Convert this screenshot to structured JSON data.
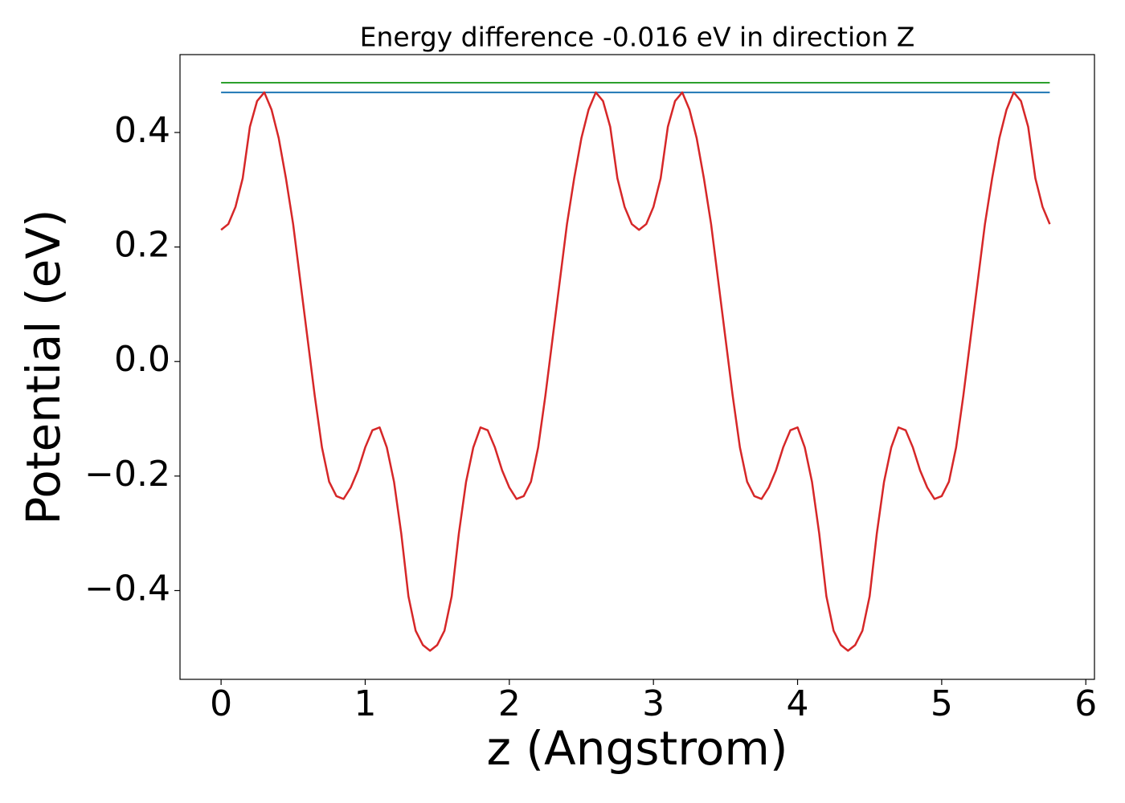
{
  "chart_data": {
    "type": "line",
    "title": "Energy difference -0.016 eV in direction Z",
    "xlabel": "z (Angstrom)",
    "ylabel": "Potential (eV)",
    "x": [
      0,
      0.05,
      0.1,
      0.15,
      0.2,
      0.25,
      0.3,
      0.35,
      0.4,
      0.45,
      0.5,
      0.55,
      0.6,
      0.65,
      0.7,
      0.75,
      0.8,
      0.85,
      0.9,
      0.95,
      1,
      1.05,
      1.1,
      1.15,
      1.2,
      1.25,
      1.3,
      1.35,
      1.4,
      1.45,
      1.5,
      1.55,
      1.6,
      1.65,
      1.7,
      1.75,
      1.8,
      1.85,
      1.9,
      1.95,
      2,
      2.05,
      2.1,
      2.15,
      2.2,
      2.25,
      2.3,
      2.35,
      2.4,
      2.45,
      2.5,
      2.55,
      2.6,
      2.65,
      2.7,
      2.75,
      2.8,
      2.85,
      2.9,
      2.95,
      3,
      3.05,
      3.1,
      3.15,
      3.2,
      3.25,
      3.3,
      3.35,
      3.4,
      3.45,
      3.5,
      3.55,
      3.6,
      3.65,
      3.7,
      3.75,
      3.8,
      3.85,
      3.9,
      3.95,
      4,
      4.05,
      4.1,
      4.15,
      4.2,
      4.25,
      4.3,
      4.35,
      4.4,
      4.45,
      4.5,
      4.55,
      4.6,
      4.65,
      4.7,
      4.75,
      4.8,
      4.85,
      4.9,
      4.95,
      5,
      5.05,
      5.1,
      5.15,
      5.2,
      5.25,
      5.3,
      5.35,
      5.4,
      5.45,
      5.5,
      5.55,
      5.6,
      5.65,
      5.7,
      5.75
    ],
    "series": [
      {
        "color": "#d62728",
        "values": [
          0.23,
          0.24,
          0.27,
          0.32,
          0.41,
          0.455,
          0.47,
          0.44,
          0.39,
          0.32,
          0.24,
          0.14,
          0.04,
          -0.06,
          -0.15,
          -0.21,
          -0.235,
          -0.24,
          -0.22,
          -0.19,
          -0.15,
          -0.12,
          -0.115,
          -0.15,
          -0.21,
          -0.3,
          -0.41,
          -0.47,
          -0.495,
          -0.505,
          -0.495,
          -0.47,
          -0.41,
          -0.3,
          -0.21,
          -0.15,
          -0.115,
          -0.12,
          -0.15,
          -0.19,
          -0.22,
          -0.24,
          -0.235,
          -0.21,
          -0.15,
          -0.06,
          0.04,
          0.14,
          0.24,
          0.32,
          0.39,
          0.44,
          0.47,
          0.455,
          0.41,
          0.32,
          0.27,
          0.24,
          0.23,
          0.24,
          0.27,
          0.32,
          0.41,
          0.455,
          0.47,
          0.44,
          0.39,
          0.32,
          0.24,
          0.14,
          0.04,
          -0.06,
          -0.15,
          -0.21,
          -0.235,
          -0.24,
          -0.22,
          -0.19,
          -0.15,
          -0.12,
          -0.115,
          -0.15,
          -0.21,
          -0.3,
          -0.41,
          -0.47,
          -0.495,
          -0.505,
          -0.495,
          -0.47,
          -0.41,
          -0.3,
          -0.21,
          -0.15,
          -0.115,
          -0.12,
          -0.15,
          -0.19,
          -0.22,
          -0.24,
          -0.235,
          -0.21,
          -0.15,
          -0.06,
          0.04,
          0.14,
          0.24,
          0.32,
          0.39,
          0.44,
          0.47,
          0.455,
          0.41,
          0.32,
          0.27,
          0.24
        ]
      }
    ],
    "hlines": [
      {
        "value": 0.487,
        "color": "#2ca02c"
      },
      {
        "value": 0.47,
        "color": "#1f77b4"
      }
    ],
    "xlim": [
      -0.285,
      6.06
    ],
    "ylim": [
      -0.555,
      0.536
    ],
    "xticks": [
      0,
      1,
      2,
      3,
      4,
      5,
      6
    ],
    "yticks": [
      {
        "value": -0.4,
        "label": "−0.4"
      },
      {
        "value": -0.2,
        "label": "−0.2"
      },
      {
        "value": 0,
        "label": "0.0"
      },
      0.2,
      0.4
    ]
  }
}
